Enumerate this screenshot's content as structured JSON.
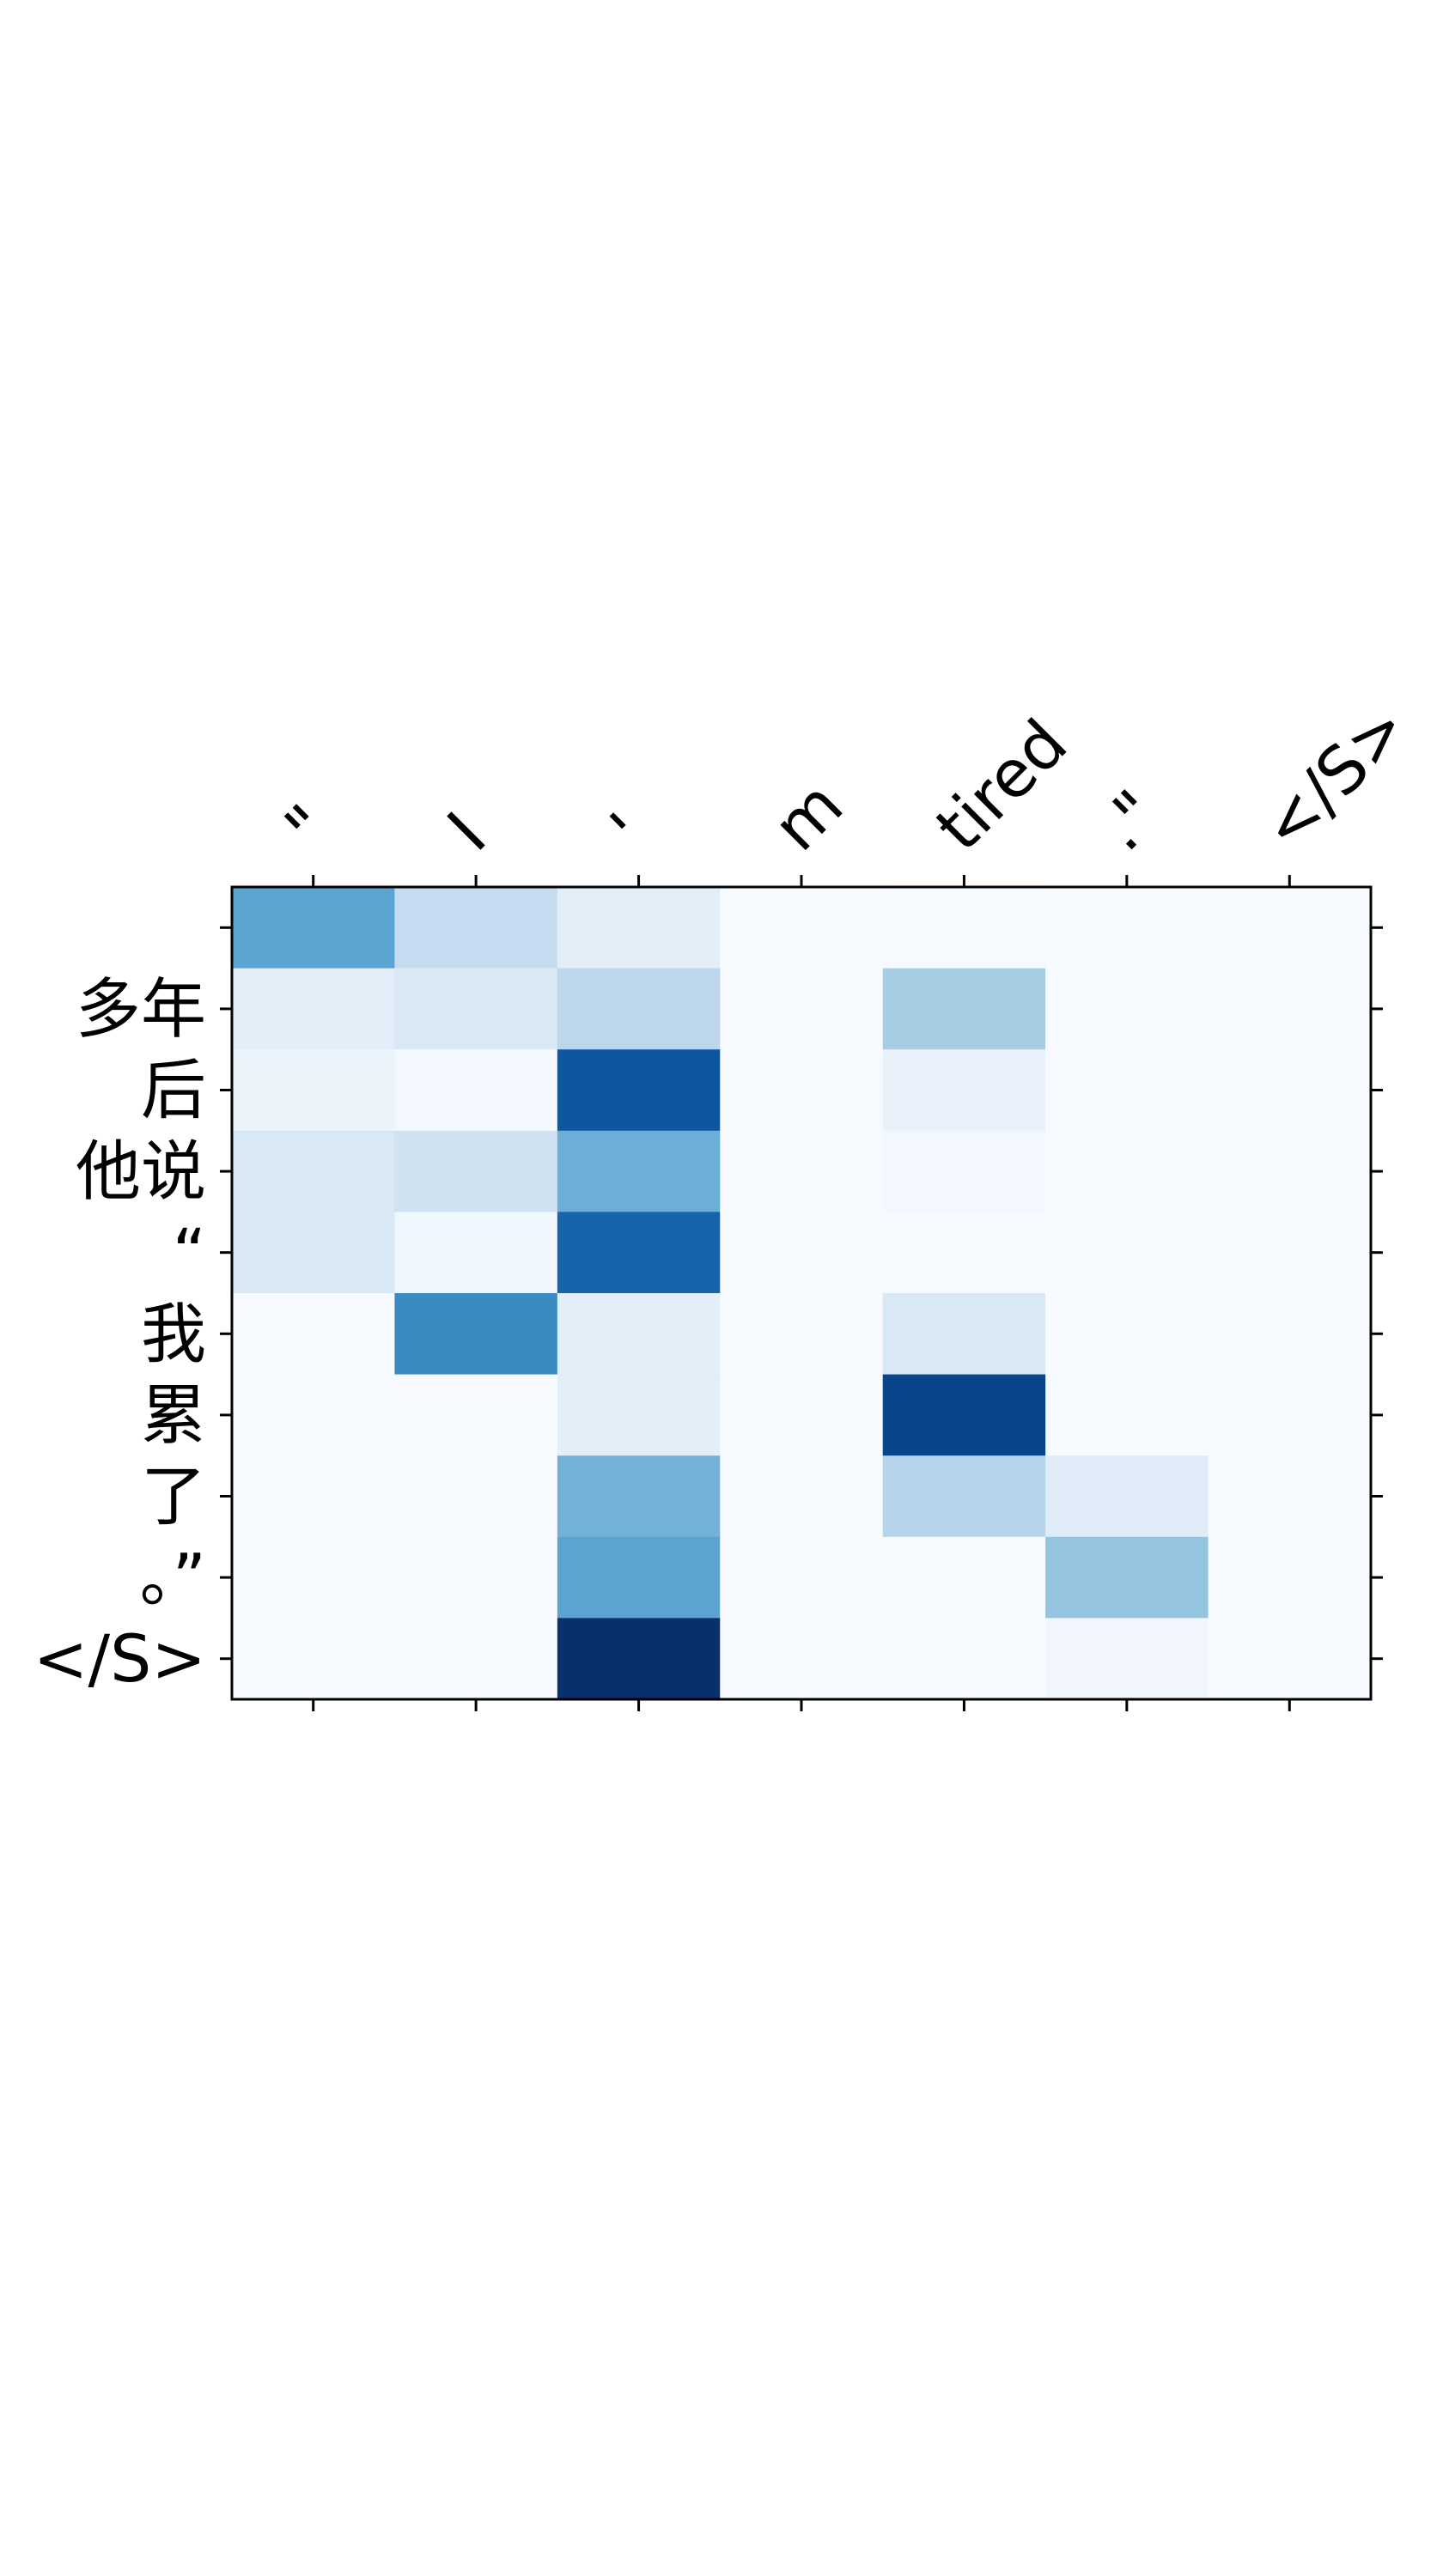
{
  "chart_data": {
    "type": "heatmap",
    "title": "",
    "xlabel": "",
    "ylabel": "",
    "colormap": "Blues",
    "value_range": [
      0,
      1
    ],
    "x_axis_position": "top",
    "x_tick_labels": [
      "\"",
      "I",
      "'",
      "m",
      "tired",
      ".\"",
      "</S>"
    ],
    "y_tick_labels": [
      "",
      "多年",
      "后",
      "他说",
      "“",
      "我",
      "累",
      "了",
      "。”",
      "</S>"
    ],
    "values": [
      [
        0.55,
        0.25,
        0.1,
        0.0,
        0.01,
        0.0,
        0.0
      ],
      [
        0.1,
        0.15,
        0.28,
        0.0,
        0.35,
        0.0,
        0.0
      ],
      [
        0.06,
        0.02,
        0.85,
        0.0,
        0.07,
        0.0,
        0.0
      ],
      [
        0.15,
        0.2,
        0.5,
        0.0,
        0.02,
        0.0,
        0.0
      ],
      [
        0.15,
        0.04,
        0.8,
        0.0,
        0.0,
        0.0,
        0.0
      ],
      [
        0.0,
        0.65,
        0.1,
        0.0,
        0.15,
        0.0,
        0.0
      ],
      [
        0.0,
        0.0,
        0.1,
        0.0,
        0.92,
        0.0,
        0.0
      ],
      [
        0.0,
        0.0,
        0.48,
        0.0,
        0.3,
        0.12,
        0.0
      ],
      [
        0.0,
        0.0,
        0.55,
        0.0,
        0.01,
        0.4,
        0.0
      ],
      [
        0.0,
        0.0,
        1.0,
        0.0,
        0.0,
        0.03,
        0.0
      ]
    ]
  }
}
